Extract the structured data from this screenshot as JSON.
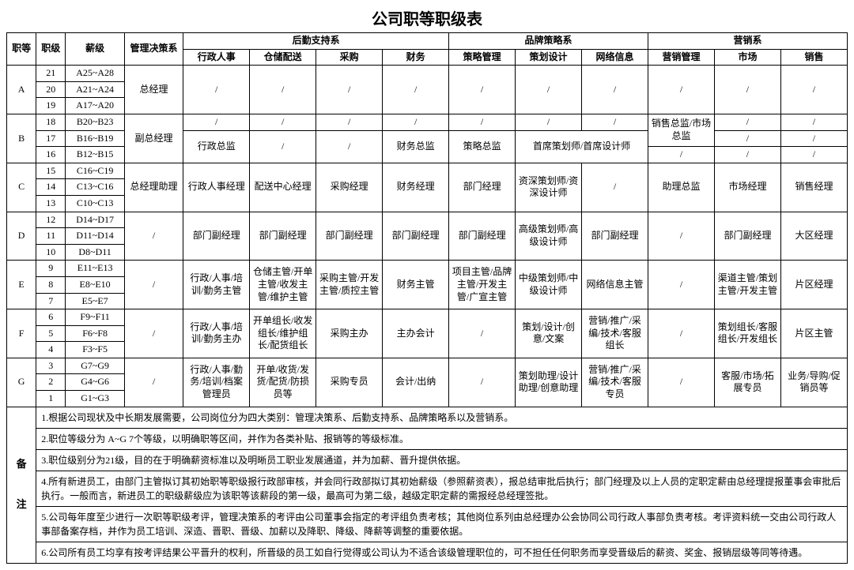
{
  "title": "公司职等职级表",
  "headers": {
    "col1": "职等",
    "col2": "职级",
    "col3": "薪级",
    "col4": "管理决策系",
    "group1": "后勤支持系",
    "group1_sub": [
      "行政人事",
      "仓储配送",
      "采购",
      "财务"
    ],
    "group2": "品牌策略系",
    "group2_sub": [
      "策略管理",
      "策划设计",
      "网络信息"
    ],
    "group3": "营销系",
    "group3_sub": [
      "营销管理",
      "市场",
      "销售"
    ]
  },
  "rows": [
    {
      "grade": "A",
      "levels": [
        "21",
        "20",
        "19"
      ],
      "salary": [
        "A25~A28",
        "A21~A24",
        "A17~A20"
      ],
      "mgmt": "总经理",
      "sub": [
        "/",
        "/",
        "/",
        "/",
        "/",
        "/",
        "/",
        "/",
        "/",
        "/"
      ]
    },
    {
      "grade": "B",
      "levels": [
        "18",
        "17",
        "16"
      ],
      "salary": [
        "B20~B23",
        "B16~B19",
        "B12~B15"
      ],
      "mgmt": "副总经理",
      "spec": true
    },
    {
      "grade": "C",
      "levels": [
        "15",
        "14",
        "13"
      ],
      "salary": [
        "C16~C19",
        "C13~C16",
        "C10~C13"
      ],
      "mgmt": "总经理助理",
      "sub": [
        "行政人事经理",
        "配送中心经理",
        "采购经理",
        "财务经理",
        "部门经理",
        "资深策划师/资深设计师",
        "/",
        "助理总监",
        "市场经理",
        "销售经理"
      ]
    },
    {
      "grade": "D",
      "levels": [
        "12",
        "11",
        "10"
      ],
      "salary": [
        "D14~D17",
        "D11~D14",
        "D8~D11"
      ],
      "mgmt": "/",
      "sub": [
        "部门副经理",
        "部门副经理",
        "部门副经理",
        "部门副经理",
        "部门副经理",
        "高级策划师/高级设计师",
        "部门副经理",
        "/",
        "部门副经理",
        "大区经理"
      ]
    },
    {
      "grade": "E",
      "levels": [
        "9",
        "8",
        "7"
      ],
      "salary": [
        "E11~E13",
        "E8~E10",
        "E5~E7"
      ],
      "mgmt": "/",
      "sub": [
        "行政/人事/培训/勤务主管",
        "仓储主管/开单主管/收发主管/维护主管",
        "采购主管/开发主管/质控主管",
        "财务主管",
        "项目主管/品牌主管/开发主管/广宣主管",
        "中级策划师/中级设计师",
        "网络信息主管",
        "/",
        "渠道主管/策划主管/开发主管",
        "片区经理"
      ]
    },
    {
      "grade": "F",
      "levels": [
        "6",
        "5",
        "4"
      ],
      "salary": [
        "F9~F11",
        "F6~F8",
        "F3~F5"
      ],
      "mgmt": "/",
      "sub": [
        "行政/人事/培训/勤务主办",
        "开单组长/收发组长/维护组长/配货组长",
        "采购主办",
        "主办会计",
        "/",
        "策划/设计/创意/文案",
        "营销/推广/采编/技术/客服组长",
        "/",
        "策划组长/客服组长/开发组长",
        "片区主管"
      ]
    },
    {
      "grade": "G",
      "levels": [
        "3",
        "2",
        "1"
      ],
      "salary": [
        "G7~G9",
        "G4~G6",
        "G1~G3"
      ],
      "mgmt": "/",
      "sub": [
        "行政/人事/勤务/培训/档案管理员",
        "开单/收货/发货/配货/防损员等",
        "采购专员",
        "会计/出纳",
        "/",
        "策划助理/设计助理/创意助理",
        "营销/推广/采编/技术/客服专员",
        "/",
        "客服/市场/拓展专员",
        "业务/导购/促销员等"
      ]
    }
  ],
  "B_row1": [
    "/",
    "/",
    "/",
    "/",
    "/",
    "/",
    "/",
    "销售总监/市场总监",
    "/",
    "/"
  ],
  "B_row_merge": {
    "c0": "行政总监",
    "c1": "/",
    "c2": "/",
    "c3": "财务总监",
    "c4": "策略总监",
    "c56": "首席策划师/首席设计师",
    "c8": "/",
    "c9": "/"
  },
  "B_row3": [
    "/",
    "/",
    "/",
    "/",
    "/",
    "/",
    "/",
    "/",
    "/",
    "/"
  ],
  "notes_label": "备",
  "notes_label2": "注",
  "notes": [
    "1.根据公司现状及中长期发展需要，公司岗位分为四大类别：管理决策系、后勤支持系、品牌策略系以及营销系。",
    "2.职位等级分为 A~G 7个等级，以明确职等区间，并作为各类补贴、报销等的等级标准。",
    "3.职位级别分为21级，目的在于明确薪资标准以及明晰员工职业发展通道，并为加薪、晋升提供依据。",
    "4.所有新进员工，由部门主管拟订其初始职等职级报行政部审核，并会同行政部拟订其初始薪级（参照薪资表），报总结审批后执行；部门经理及以上人员的定职定薪由总经理提报董事会审批后执行。一般而言，新进员工的职级薪级应为该职等该薪段的第一级，最高可为第二级，越级定职定薪的需报经总经理签批。",
    "5.公司每年度至少进行一次职等职级考评，管理决策系的考评由公司董事会指定的考评组负责考核；其他岗位系列由总经理办公会协同公司行政人事部负责考核。考评资料统一交由公司行政人事部备案存档，并作为员工培训、深造、晋职、晋级、加薪以及降职、降级、降薪等调整的重要依据。",
    "6.公司所有员工均享有按考评结果公平晋升的权利，所晋级的员工如自行觉得或公司认为不适合该级管理职位的，可不担任任何职务而享受晋级后的薪资、奖金、报销层级等同等待遇。"
  ],
  "style": {
    "border_color": "#000000",
    "bg": "#ffffff",
    "title_fontsize": 20,
    "cell_fontsize": 12
  }
}
